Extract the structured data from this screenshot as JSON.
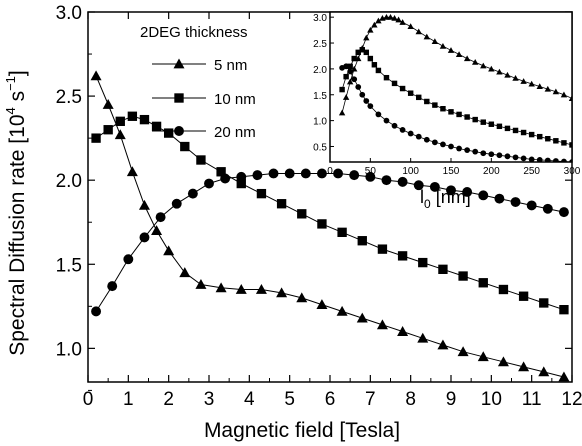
{
  "chart_data": {
    "type": "line",
    "xlabel": "Magnetic field [Tesla]",
    "ylabel": "Spectral Diffusion rate [10",
    "ylabel_exp1": "4",
    "ylabel_mid": " s",
    "ylabel_exp2": "−1",
    "ylabel_end": "]",
    "xlim": [
      0,
      12
    ],
    "ylim": [
      0.8,
      3.0
    ],
    "xticks": [
      "0",
      "1",
      "2",
      "3",
      "4",
      "5",
      "6",
      "7",
      "8",
      "9",
      "10",
      "11",
      "12"
    ],
    "yticks": [
      "1.0",
      "1.5",
      "2.0",
      "2.5",
      "3.0"
    ],
    "grid": false,
    "legend": {
      "title": "2DEG thickness",
      "placement": "top-left-inside",
      "entries": [
        "5 nm",
        "10 nm",
        "20 nm"
      ]
    },
    "series": [
      {
        "name": "5 nm",
        "marker": "triangle",
        "x": [
          0.2,
          0.5,
          0.8,
          1.1,
          1.4,
          1.7,
          2.0,
          2.4,
          2.8,
          3.3,
          3.8,
          4.3,
          4.8,
          5.3,
          5.8,
          6.3,
          6.8,
          7.3,
          7.8,
          8.3,
          8.8,
          9.3,
          9.8,
          10.3,
          10.8,
          11.3,
          11.8
        ],
        "y": [
          2.62,
          2.45,
          2.27,
          2.05,
          1.85,
          1.7,
          1.58,
          1.45,
          1.38,
          1.36,
          1.35,
          1.35,
          1.33,
          1.3,
          1.26,
          1.22,
          1.18,
          1.14,
          1.1,
          1.06,
          1.02,
          0.98,
          0.95,
          0.92,
          0.89,
          0.86,
          0.83
        ]
      },
      {
        "name": "10 nm",
        "marker": "square",
        "x": [
          0.2,
          0.5,
          0.8,
          1.1,
          1.4,
          1.7,
          2.0,
          2.4,
          2.8,
          3.3,
          3.8,
          4.3,
          4.8,
          5.3,
          5.8,
          6.3,
          6.8,
          7.3,
          7.8,
          8.3,
          8.8,
          9.3,
          9.8,
          10.3,
          10.8,
          11.3,
          11.8
        ],
        "y": [
          2.25,
          2.3,
          2.35,
          2.38,
          2.36,
          2.32,
          2.28,
          2.2,
          2.12,
          2.05,
          1.98,
          1.92,
          1.86,
          1.8,
          1.74,
          1.69,
          1.64,
          1.59,
          1.55,
          1.51,
          1.47,
          1.43,
          1.39,
          1.35,
          1.31,
          1.27,
          1.23
        ]
      },
      {
        "name": "20 nm",
        "marker": "circle",
        "x": [
          0.2,
          0.6,
          1.0,
          1.4,
          1.8,
          2.2,
          2.6,
          3.0,
          3.4,
          3.8,
          4.2,
          4.6,
          5.0,
          5.4,
          5.8,
          6.2,
          6.6,
          7.0,
          7.4,
          7.8,
          8.2,
          8.6,
          9.0,
          9.4,
          9.8,
          10.2,
          10.6,
          11.0,
          11.4,
          11.8
        ],
        "y": [
          1.22,
          1.37,
          1.53,
          1.66,
          1.78,
          1.86,
          1.92,
          1.98,
          2.01,
          2.02,
          2.03,
          2.04,
          2.04,
          2.04,
          2.04,
          2.04,
          2.03,
          2.02,
          2.0,
          1.99,
          1.97,
          1.96,
          1.94,
          1.93,
          1.91,
          1.89,
          1.87,
          1.85,
          1.83,
          1.81
        ]
      }
    ],
    "inset": {
      "xlabel": "l",
      "xlabel_sub": "0",
      "xlabel_unit": " [nm]",
      "xlim": [
        0,
        300
      ],
      "ylim": [
        0.2,
        3.1
      ],
      "xticks": [
        "0",
        "50",
        "100",
        "150",
        "200",
        "250",
        "300"
      ],
      "yticks": [
        "0.5",
        "1.0",
        "1.5",
        "2.0",
        "2.5",
        "3.0"
      ],
      "series": [
        {
          "name": "5 nm",
          "marker": "triangle",
          "x": [
            15,
            20,
            25,
            30,
            35,
            40,
            45,
            50,
            55,
            60,
            65,
            70,
            75,
            80,
            85,
            90,
            100,
            110,
            120,
            130,
            140,
            150,
            160,
            170,
            180,
            190,
            200,
            210,
            220,
            230,
            240,
            250,
            260,
            270,
            280,
            290,
            300
          ],
          "y": [
            1.15,
            1.45,
            1.75,
            2.0,
            2.2,
            2.4,
            2.6,
            2.75,
            2.85,
            2.93,
            2.98,
            3.0,
            3.0,
            2.98,
            2.95,
            2.9,
            2.82,
            2.72,
            2.62,
            2.53,
            2.44,
            2.36,
            2.28,
            2.2,
            2.13,
            2.06,
            2.0,
            1.94,
            1.88,
            1.82,
            1.76,
            1.71,
            1.66,
            1.61,
            1.56,
            1.5,
            1.43
          ]
        },
        {
          "name": "10 nm",
          "marker": "square",
          "x": [
            15,
            20,
            25,
            30,
            35,
            40,
            45,
            50,
            55,
            60,
            70,
            80,
            90,
            100,
            110,
            120,
            130,
            140,
            150,
            160,
            170,
            180,
            190,
            200,
            210,
            220,
            230,
            240,
            250,
            260,
            270,
            280,
            290,
            300
          ],
          "y": [
            1.6,
            1.85,
            2.05,
            2.2,
            2.32,
            2.37,
            2.32,
            2.2,
            2.08,
            1.97,
            1.83,
            1.72,
            1.62,
            1.53,
            1.45,
            1.37,
            1.3,
            1.23,
            1.17,
            1.12,
            1.07,
            1.02,
            0.97,
            0.93,
            0.89,
            0.85,
            0.81,
            0.77,
            0.73,
            0.69,
            0.65,
            0.61,
            0.57,
            0.53
          ]
        },
        {
          "name": "20 nm",
          "marker": "circle",
          "x": [
            15,
            20,
            25,
            30,
            35,
            40,
            45,
            50,
            60,
            70,
            80,
            90,
            100,
            110,
            120,
            130,
            140,
            150,
            160,
            170,
            180,
            190,
            200,
            210,
            220,
            230,
            240,
            250,
            260,
            270,
            280,
            290,
            300
          ],
          "y": [
            2.02,
            2.05,
            1.95,
            1.8,
            1.65,
            1.5,
            1.38,
            1.28,
            1.12,
            1.0,
            0.9,
            0.82,
            0.75,
            0.69,
            0.63,
            0.58,
            0.54,
            0.5,
            0.46,
            0.43,
            0.4,
            0.37,
            0.35,
            0.33,
            0.31,
            0.29,
            0.27,
            0.25,
            0.24,
            0.23,
            0.22,
            0.21,
            0.2
          ]
        }
      ]
    }
  }
}
